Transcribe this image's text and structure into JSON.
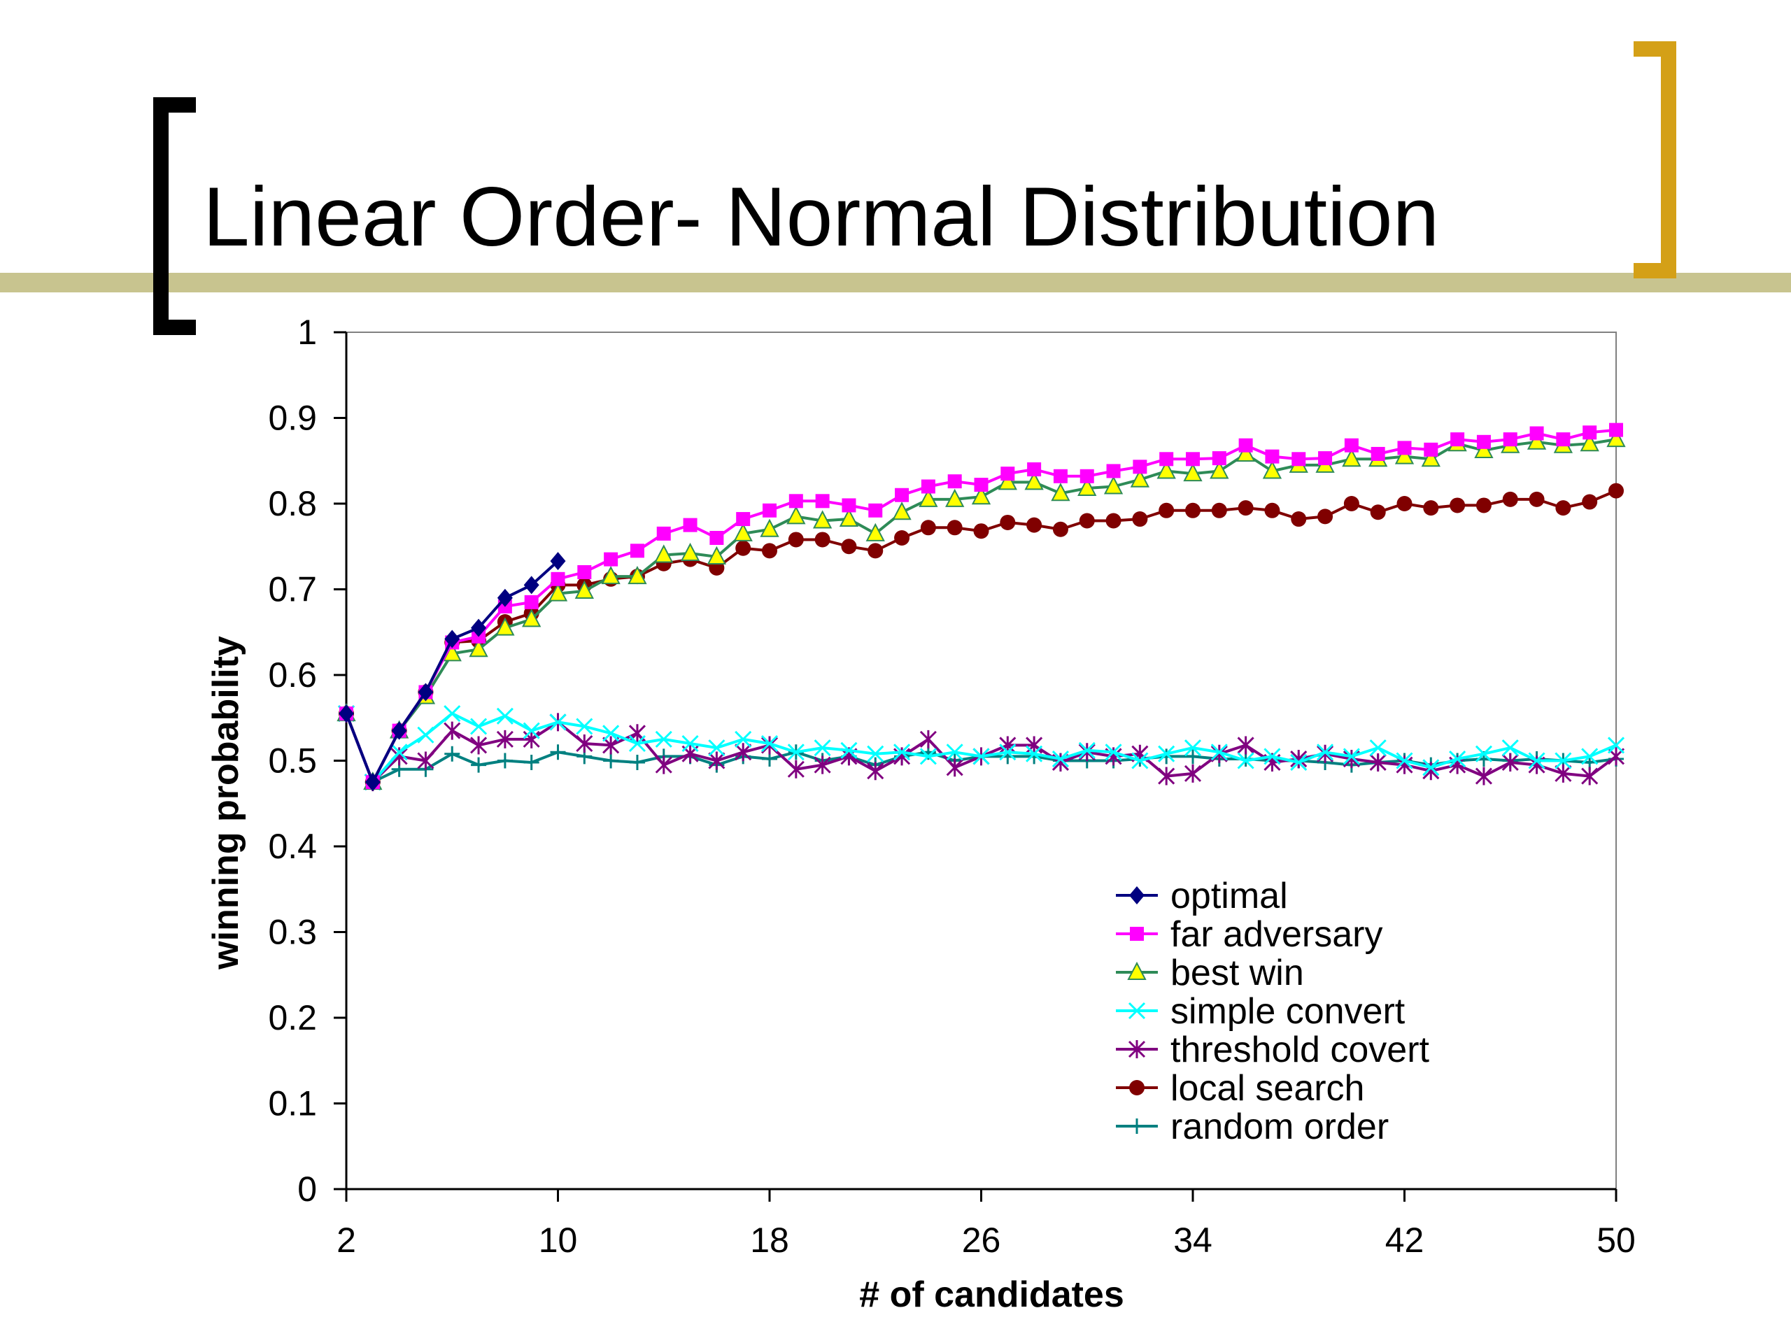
{
  "slide": {
    "title": "Linear Order- Normal Distribution"
  },
  "colors": {
    "olive_bar": "#c8c48f",
    "black_bracket": "#000000",
    "gold_bracket": "#d4a017"
  },
  "chart_data": {
    "type": "line",
    "title": "",
    "xlabel": "# of candidates",
    "ylabel": "winning probability",
    "xlim": [
      2,
      50
    ],
    "ylim": [
      0,
      1
    ],
    "xticks": [
      "2",
      "10",
      "18",
      "26",
      "34",
      "42",
      "50"
    ],
    "yticks": [
      "0",
      "0.1",
      "0.2",
      "0.3",
      "0.4",
      "0.5",
      "0.6",
      "0.7",
      "0.8",
      "0.9",
      "1"
    ],
    "grid": false,
    "legend_position": "bottom-right",
    "series": [
      {
        "name": "optimal",
        "color": "#000080",
        "marker": "diamond",
        "x": [
          2,
          3,
          4,
          5,
          6,
          7,
          8,
          9,
          10
        ],
        "values": [
          0.555,
          0.475,
          0.535,
          0.58,
          0.642,
          0.655,
          0.69,
          0.705,
          0.733
        ]
      },
      {
        "name": "far adversary",
        "color": "#ff00ff",
        "marker": "square",
        "x": [
          2,
          3,
          4,
          5,
          6,
          7,
          8,
          9,
          10,
          11,
          12,
          13,
          14,
          15,
          16,
          17,
          18,
          19,
          20,
          21,
          22,
          23,
          24,
          25,
          26,
          27,
          28,
          29,
          30,
          31,
          32,
          33,
          34,
          35,
          36,
          37,
          38,
          39,
          40,
          41,
          42,
          43,
          44,
          45,
          46,
          47,
          48,
          49,
          50
        ],
        "values": [
          0.555,
          0.475,
          0.535,
          0.58,
          0.638,
          0.645,
          0.68,
          0.685,
          0.712,
          0.72,
          0.735,
          0.745,
          0.765,
          0.775,
          0.76,
          0.782,
          0.792,
          0.803,
          0.803,
          0.798,
          0.792,
          0.81,
          0.82,
          0.826,
          0.822,
          0.835,
          0.84,
          0.832,
          0.832,
          0.838,
          0.843,
          0.852,
          0.852,
          0.853,
          0.868,
          0.855,
          0.852,
          0.853,
          0.868,
          0.858,
          0.865,
          0.863,
          0.875,
          0.872,
          0.875,
          0.882,
          0.875,
          0.883,
          0.886
        ]
      },
      {
        "name": "best win",
        "color": "#2e8b57",
        "marker": "triangle",
        "fill": "#ffff00",
        "x": [
          2,
          3,
          4,
          5,
          6,
          7,
          8,
          9,
          10,
          11,
          12,
          13,
          14,
          15,
          16,
          17,
          18,
          19,
          20,
          21,
          22,
          23,
          24,
          25,
          26,
          27,
          28,
          29,
          30,
          31,
          32,
          33,
          34,
          35,
          36,
          37,
          38,
          39,
          40,
          41,
          42,
          43,
          44,
          45,
          46,
          47,
          48,
          49,
          50
        ],
        "values": [
          0.555,
          0.475,
          0.535,
          0.575,
          0.625,
          0.63,
          0.655,
          0.665,
          0.695,
          0.698,
          0.715,
          0.715,
          0.74,
          0.742,
          0.738,
          0.765,
          0.77,
          0.785,
          0.78,
          0.782,
          0.765,
          0.79,
          0.805,
          0.805,
          0.808,
          0.825,
          0.825,
          0.812,
          0.818,
          0.82,
          0.828,
          0.838,
          0.835,
          0.838,
          0.858,
          0.838,
          0.845,
          0.845,
          0.852,
          0.852,
          0.855,
          0.852,
          0.87,
          0.862,
          0.868,
          0.872,
          0.868,
          0.87,
          0.875
        ]
      },
      {
        "name": "simple convert",
        "color": "#00ffff",
        "marker": "x",
        "x": [
          2,
          3,
          4,
          5,
          6,
          7,
          8,
          9,
          10,
          11,
          12,
          13,
          14,
          15,
          16,
          17,
          18,
          19,
          20,
          21,
          22,
          23,
          24,
          25,
          26,
          27,
          28,
          29,
          30,
          31,
          32,
          33,
          34,
          35,
          36,
          37,
          38,
          39,
          40,
          41,
          42,
          43,
          44,
          45,
          46,
          47,
          48,
          49,
          50
        ],
        "values": [
          0.555,
          0.475,
          0.51,
          0.53,
          0.555,
          0.54,
          0.552,
          0.535,
          0.545,
          0.54,
          0.532,
          0.52,
          0.525,
          0.52,
          0.515,
          0.525,
          0.52,
          0.51,
          0.515,
          0.512,
          0.508,
          0.51,
          0.505,
          0.51,
          0.505,
          0.51,
          0.508,
          0.502,
          0.512,
          0.51,
          0.5,
          0.508,
          0.515,
          0.51,
          0.5,
          0.505,
          0.498,
          0.51,
          0.505,
          0.515,
          0.5,
          0.492,
          0.502,
          0.508,
          0.515,
          0.5,
          0.5,
          0.505,
          0.518
        ]
      },
      {
        "name": "threshold covert",
        "color": "#800080",
        "marker": "star",
        "x": [
          2,
          3,
          4,
          5,
          6,
          7,
          8,
          9,
          10,
          11,
          12,
          13,
          14,
          15,
          16,
          17,
          18,
          19,
          20,
          21,
          22,
          23,
          24,
          25,
          26,
          27,
          28,
          29,
          30,
          31,
          32,
          33,
          34,
          35,
          36,
          37,
          38,
          39,
          40,
          41,
          42,
          43,
          44,
          45,
          46,
          47,
          48,
          49,
          50
        ],
        "values": [
          0.555,
          0.475,
          0.505,
          0.5,
          0.535,
          0.518,
          0.525,
          0.525,
          0.545,
          0.52,
          0.518,
          0.532,
          0.495,
          0.508,
          0.5,
          0.51,
          0.518,
          0.49,
          0.495,
          0.505,
          0.488,
          0.505,
          0.525,
          0.492,
          0.505,
          0.518,
          0.518,
          0.498,
          0.51,
          0.505,
          0.508,
          0.482,
          0.485,
          0.508,
          0.518,
          0.498,
          0.502,
          0.508,
          0.502,
          0.498,
          0.495,
          0.488,
          0.495,
          0.482,
          0.498,
          0.495,
          0.485,
          0.482,
          0.505
        ]
      },
      {
        "name": "local search",
        "color": "#800000",
        "marker": "circle",
        "x": [
          2,
          3,
          4,
          5,
          6,
          7,
          8,
          9,
          10,
          11,
          12,
          13,
          14,
          15,
          16,
          17,
          18,
          19,
          20,
          21,
          22,
          23,
          24,
          25,
          26,
          27,
          28,
          29,
          30,
          31,
          32,
          33,
          34,
          35,
          36,
          37,
          38,
          39,
          40,
          41,
          42,
          43,
          44,
          45,
          46,
          47,
          48,
          49,
          50
        ],
        "values": [
          0.555,
          0.475,
          0.535,
          0.58,
          0.638,
          0.64,
          0.662,
          0.672,
          0.705,
          0.705,
          0.712,
          0.715,
          0.73,
          0.735,
          0.725,
          0.748,
          0.745,
          0.758,
          0.758,
          0.75,
          0.745,
          0.76,
          0.772,
          0.772,
          0.768,
          0.778,
          0.775,
          0.77,
          0.78,
          0.78,
          0.782,
          0.792,
          0.792,
          0.792,
          0.795,
          0.792,
          0.782,
          0.785,
          0.8,
          0.79,
          0.8,
          0.795,
          0.798,
          0.798,
          0.805,
          0.805,
          0.795,
          0.802,
          0.815
        ]
      },
      {
        "name": "random order",
        "color": "#008080",
        "marker": "plus",
        "x": [
          2,
          3,
          4,
          5,
          6,
          7,
          8,
          9,
          10,
          11,
          12,
          13,
          14,
          15,
          16,
          17,
          18,
          19,
          20,
          21,
          22,
          23,
          24,
          25,
          26,
          27,
          28,
          29,
          30,
          31,
          32,
          33,
          34,
          35,
          36,
          37,
          38,
          39,
          40,
          41,
          42,
          43,
          44,
          45,
          46,
          47,
          48,
          49,
          50
        ],
        "values": [
          0.555,
          0.475,
          0.49,
          0.49,
          0.508,
          0.495,
          0.5,
          0.498,
          0.51,
          0.505,
          0.5,
          0.498,
          0.505,
          0.505,
          0.495,
          0.505,
          0.502,
          0.51,
          0.5,
          0.505,
          0.495,
          0.505,
          0.51,
          0.5,
          0.505,
          0.505,
          0.505,
          0.5,
          0.5,
          0.5,
          0.502,
          0.505,
          0.505,
          0.502,
          0.502,
          0.5,
          0.5,
          0.498,
          0.495,
          0.498,
          0.5,
          0.495,
          0.5,
          0.502,
          0.5,
          0.502,
          0.5,
          0.498,
          0.502
        ]
      }
    ]
  }
}
